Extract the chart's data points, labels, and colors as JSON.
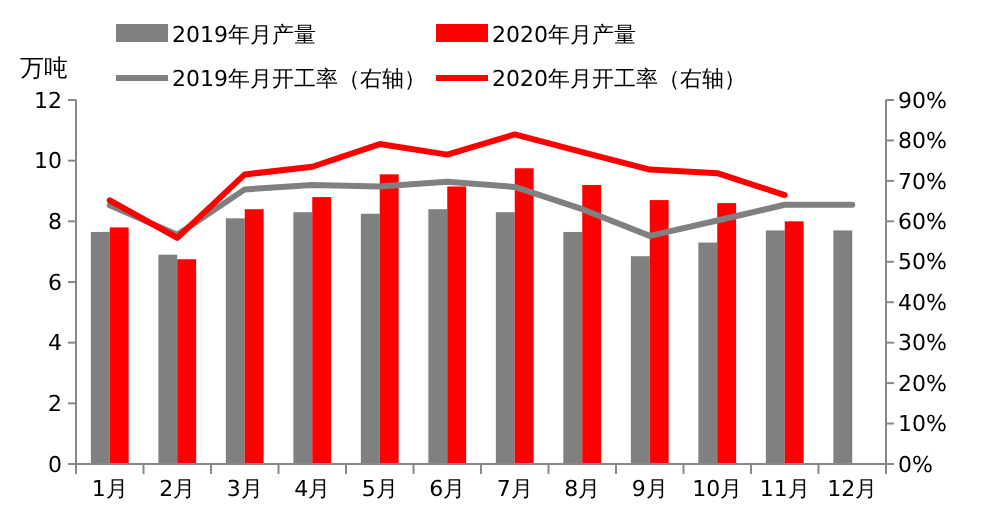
{
  "chart_data": {
    "type": "bar",
    "ylabel": "万吨",
    "categories": [
      "1月",
      "2月",
      "3月",
      "4月",
      "5月",
      "6月",
      "7月",
      "8月",
      "9月",
      "10月",
      "11月",
      "12月"
    ],
    "ylim": [
      0,
      12
    ],
    "yticks": [
      0,
      2,
      4,
      6,
      8,
      10,
      12
    ],
    "y2lim": [
      0,
      90
    ],
    "y2ticks": [
      {
        "value": 0,
        "label": "0%"
      },
      {
        "value": 10,
        "label": "10%"
      },
      {
        "value": 20,
        "label": "20%"
      },
      {
        "value": 30,
        "label": "30%"
      },
      {
        "value": 40,
        "label": "40%"
      },
      {
        "value": 50,
        "label": "50%"
      },
      {
        "value": 60,
        "label": "60%"
      },
      {
        "value": 70,
        "label": "70%"
      },
      {
        "value": 80,
        "label": "80%"
      },
      {
        "value": 90,
        "label": "90%"
      }
    ],
    "legend": "top",
    "grid": false,
    "series": [
      {
        "name": "2019年月产量",
        "color": "#808080",
        "values": [
          7.65,
          6.9,
          8.1,
          8.3,
          8.25,
          8.4,
          8.3,
          7.65,
          6.85,
          7.3,
          7.7,
          7.7
        ]
      },
      {
        "name": "2020年月产量",
        "color": "#ff0000",
        "values": [
          7.8,
          6.75,
          8.4,
          8.8,
          9.55,
          9.15,
          9.75,
          9.2,
          8.7,
          8.6,
          8.0,
          null
        ]
      },
      {
        "name": "2019年月开工率（右轴）",
        "type": "line",
        "axis": "y2",
        "color": "#808080",
        "values": [
          64,
          56.7,
          67.9,
          69,
          68.6,
          69.8,
          68.5,
          63,
          56.4,
          60.2,
          64.1,
          64.1
        ]
      },
      {
        "name": "2020年月开工率（右轴）",
        "type": "line",
        "axis": "y2",
        "color": "#ff0000",
        "values": [
          65.2,
          55.9,
          71.6,
          73.5,
          79.1,
          76.5,
          81.5,
          77.1,
          72.8,
          71.9,
          66.5,
          null
        ]
      }
    ]
  }
}
